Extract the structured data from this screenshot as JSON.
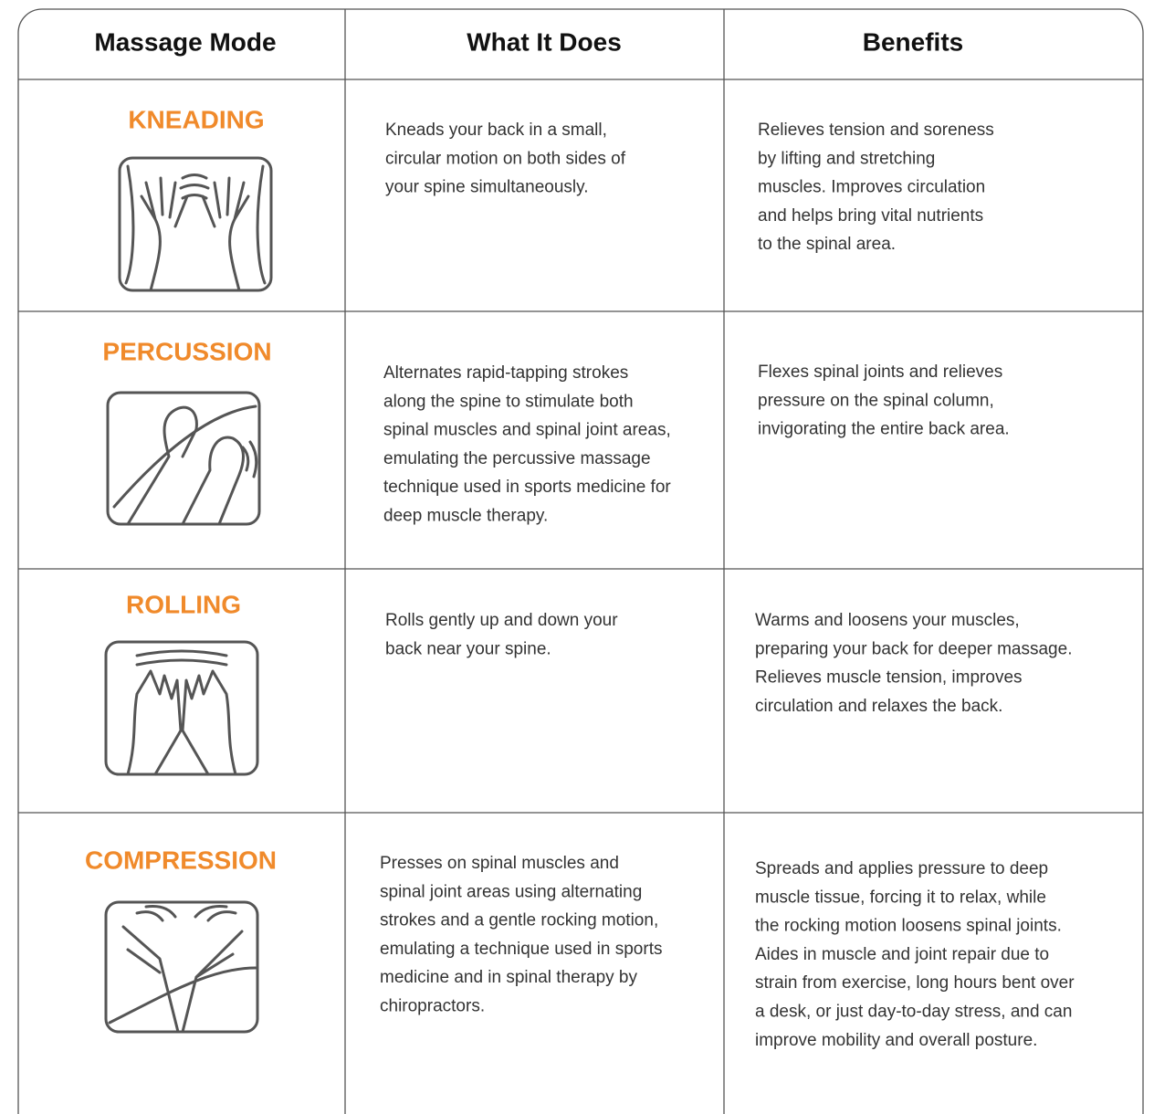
{
  "header": {
    "columns": [
      "Massage Mode",
      "What It Does",
      "Benefits"
    ]
  },
  "rows": [
    {
      "mode": "KNEADING",
      "what": [
        "Kneads your back in a small,",
        "circular motion on both sides of",
        "your spine simultaneously."
      ],
      "benefits": [
        "Relieves tension and soreness",
        "by lifting and stretching",
        "muscles. Improves circulation",
        "and helps bring vital nutrients",
        "to the spinal area."
      ]
    },
    {
      "mode": "PERCUSSION",
      "what": [
        "Alternates rapid-tapping strokes",
        "along the spine to stimulate both",
        "spinal muscles and spinal joint areas,",
        "emulating the percussive massage",
        "technique used in sports medicine for",
        "deep muscle therapy."
      ],
      "benefits": [
        "Flexes spinal joints and relieves",
        "pressure on the spinal column,",
        "invigorating the entire back area."
      ]
    },
    {
      "mode": "ROLLING",
      "what": [
        "Rolls gently up and down your",
        "back near your spine."
      ],
      "benefits": [
        "Warms and loosens your muscles,",
        "preparing your back for deeper massage.",
        "Relieves muscle tension, improves",
        "circulation and relaxes the back."
      ]
    },
    {
      "mode": "COMPRESSION",
      "what": [
        "Presses on spinal muscles and",
        "spinal joint areas using alternating",
        "strokes and a gentle rocking motion,",
        "emulating a technique used in sports",
        "medicine and in spinal therapy by",
        "chiropractors."
      ],
      "benefits": [
        "Spreads and applies pressure to deep",
        "muscle tissue, forcing it to relax, while",
        "the rocking motion loosens spinal joints.",
        "Aides in muscle and joint repair due to",
        "strain from exercise, long hours bent over",
        "a desk, or just day-to-day stress, and can",
        "improve mobility and overall posture."
      ]
    }
  ]
}
